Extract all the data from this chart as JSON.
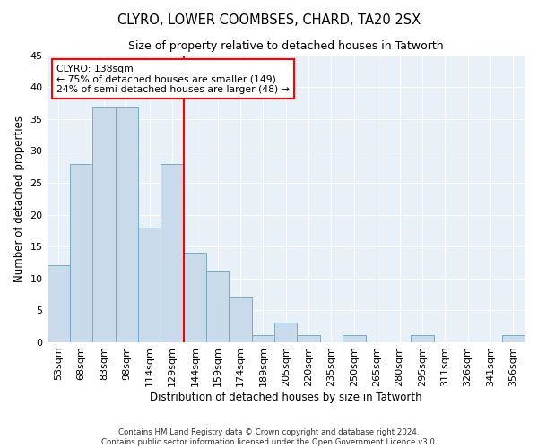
{
  "title1": "CLYRO, LOWER COOMBSES, CHARD, TA20 2SX",
  "title2": "Size of property relative to detached houses in Tatworth",
  "xlabel": "Distribution of detached houses by size in Tatworth",
  "ylabel": "Number of detached properties",
  "categories": [
    "53sqm",
    "68sqm",
    "83sqm",
    "98sqm",
    "114sqm",
    "129sqm",
    "144sqm",
    "159sqm",
    "174sqm",
    "189sqm",
    "205sqm",
    "220sqm",
    "235sqm",
    "250sqm",
    "265sqm",
    "280sqm",
    "295sqm",
    "311sqm",
    "326sqm",
    "341sqm",
    "356sqm"
  ],
  "values": [
    12,
    28,
    37,
    37,
    18,
    28,
    14,
    11,
    7,
    1,
    3,
    1,
    0,
    1,
    0,
    0,
    1,
    0,
    0,
    0,
    1
  ],
  "bar_color": "#c9daea",
  "bar_edgecolor": "#7aaac8",
  "vline_color": "red",
  "vline_idx": 6,
  "annotation_title": "CLYRO: 138sqm",
  "annotation_line1": "← 75% of detached houses are smaller (149)",
  "annotation_line2": "24% of semi-detached houses are larger (48) →",
  "annotation_box_edgecolor": "red",
  "ylim": [
    0,
    45
  ],
  "yticks": [
    0,
    5,
    10,
    15,
    20,
    25,
    30,
    35,
    40,
    45
  ],
  "footer1": "Contains HM Land Registry data © Crown copyright and database right 2024.",
  "footer2": "Contains public sector information licensed under the Open Government Licence v3.0.",
  "axes_bg_color": "#e8f0f8",
  "fig_bg_color": "#ffffff"
}
